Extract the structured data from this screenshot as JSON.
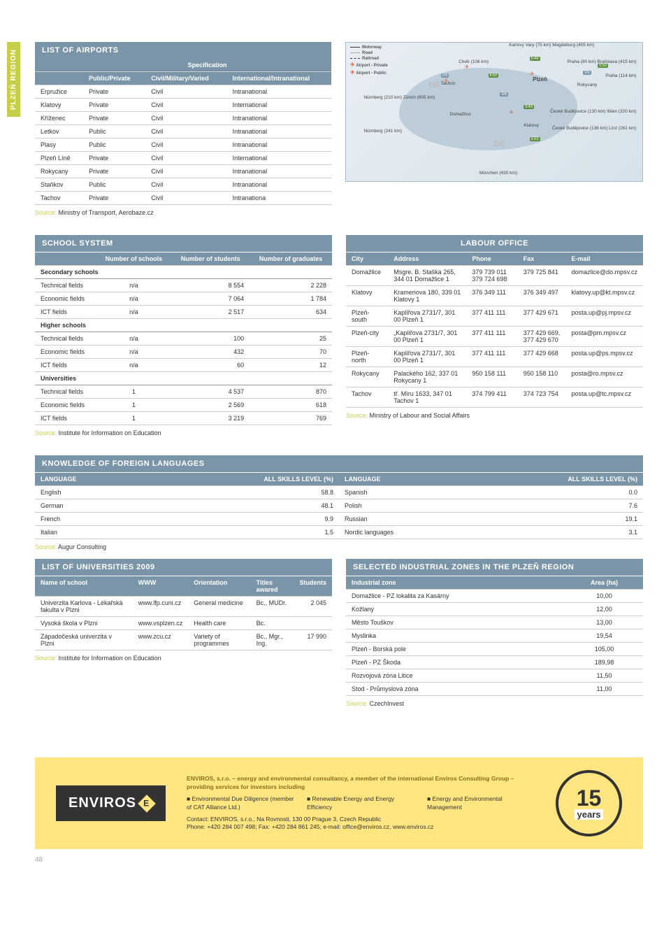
{
  "region_label": "PLZEŇ REGION",
  "page_number": "48",
  "airports": {
    "title": "LIST OF AIRPORTS",
    "spec_label": "Specification",
    "cols": [
      "Public/Private",
      "Civil/Military/Varied",
      "International/Intranational"
    ],
    "rows": [
      [
        "Erpružice",
        "Private",
        "Civil",
        "Intranational"
      ],
      [
        "Klatovy",
        "Private",
        "Civil",
        "International"
      ],
      [
        "Kříženec",
        "Private",
        "Civil",
        "Intranational"
      ],
      [
        "Letkov",
        "Public",
        "Civil",
        "Intranational"
      ],
      [
        "Plasy",
        "Public",
        "Civil",
        "Intranational"
      ],
      [
        "Plzeň Líně",
        "Private",
        "Civil",
        "International"
      ],
      [
        "Rokycany",
        "Private",
        "Civil",
        "Intranational"
      ],
      [
        "Staňkov",
        "Public",
        "Civil",
        "Intranational"
      ],
      [
        "Tachov",
        "Private",
        "Civil",
        "Intranationa"
      ]
    ],
    "source": "Ministry of Transport, Aerobaze.cz"
  },
  "map": {
    "legend": [
      "Motorway",
      "Road",
      "Railroad",
      "Airport - Private",
      "Airport - Public"
    ],
    "labels": {
      "kv": "Karlovy Vary (75 km) Magdeburg (405 km)",
      "cheb": "Cheb (106 km)",
      "praha90": "Praha (90 km) Bratislava (415 km)",
      "praha114": "Praha (114 km)",
      "nurnberg210": "Nürnberg (210 km) Zürich (605 km)",
      "nurnberg241": "Nürnberg (241 km)",
      "cb130": "České Budějovice (130 km) Wien (320 km)",
      "cb136": "České Budějovice (136 km) Linz (261 km)",
      "munchen": "München (430 km)",
      "plzen": "Plzeň",
      "tachov": "Tachov",
      "domazlice": "Domažlice",
      "klatovy": "Klatovy",
      "rokycany": "Rokycany"
    },
    "roads_e": [
      "E49",
      "E50",
      "E50",
      "E49",
      "E53"
    ],
    "roads_d": [
      "D5",
      "D5",
      "D5"
    ],
    "de": "DE"
  },
  "school": {
    "title": "SCHOOL SYSTEM",
    "cols": [
      "Number of schools",
      "Number of students",
      "Number of graduates"
    ],
    "groups": [
      {
        "name": "Secondary schools",
        "rows": [
          [
            "Technical fields",
            "n/a",
            "8 554",
            "2 228"
          ],
          [
            "Economic fields",
            "n/a",
            "7 064",
            "1 784"
          ],
          [
            "ICT fields",
            "n/a",
            "2 517",
            "634"
          ]
        ]
      },
      {
        "name": "Higher schools",
        "rows": [
          [
            "Technical fields",
            "n/a",
            "100",
            "25"
          ],
          [
            "Economic fields",
            "n/a",
            "432",
            "70"
          ],
          [
            "ICT fields",
            "n/a",
            "60",
            "12"
          ]
        ]
      },
      {
        "name": "Universities",
        "rows": [
          [
            "Technical fields",
            "1",
            "4 537",
            "870"
          ],
          [
            "Economic fields",
            "1",
            "2 569",
            "618"
          ],
          [
            "ICT fields",
            "1",
            "3 219",
            "769"
          ]
        ]
      }
    ],
    "source": "Institute for Information on Education"
  },
  "labour": {
    "title": "LABOUR OFFICE",
    "cols": [
      "City",
      "Address",
      "Phone",
      "Fax",
      "E-mail"
    ],
    "rows": [
      [
        "Domažlice",
        "Msgre. B. Staška 265, 344 01 Domažlice 1",
        "379 739 011 379 724 698",
        "379 725 841",
        "domazlice@do.mpsv.cz"
      ],
      [
        "Klatovy",
        "Krameriova 180, 339 01 Klatovy 1",
        "376 349 111",
        "376 349 497",
        "klatovy.up@kt.mpsv.cz"
      ],
      [
        "Plzeň-south",
        "Kaplířova 2731/7, 301 00 Plzeň 1",
        "377 411 111",
        "377 429 671",
        "posta.up@pj.mpsv.cz"
      ],
      [
        "Plzeň-city",
        "„Kaplířova 2731/7, 301 00 Plzeň 1",
        "377 411 111",
        "377 429 669, 377 429 670",
        "posta@pm.mpsv.cz"
      ],
      [
        "Plzeň-north",
        "Kaplířova 2731/7, 301 00 Plzeň 1",
        "377 411 111",
        "377 429 668",
        "posta.up@ps.mpsv.cz"
      ],
      [
        "Rokycany",
        "Palackého 162, 337 01 Rokycany 1",
        "950 158 111",
        "950 158 110",
        "posta@ro.mpsv.cz"
      ],
      [
        "Tachov",
        "tř. Míru 1633, 347 01 Tachov 1",
        "374 799 411",
        "374 723 754",
        "posta.up@tc.mpsv.cz"
      ]
    ],
    "source": "Ministry of Labour and Social Affairs"
  },
  "languages": {
    "title": "KNOWLEDGE OF FOREIGN LANGUAGES",
    "cols": [
      "LANGUAGE",
      "ALL SKILLS LEVEL (%)",
      "LANGUAGE",
      "ALL SKILLS LEVEL (%)"
    ],
    "rows": [
      [
        "English",
        "58.8",
        "Spanish",
        "0.0"
      ],
      [
        "German",
        "48.1",
        "Polish",
        "7.6"
      ],
      [
        "French",
        "9.9",
        "Russian",
        "19.1"
      ],
      [
        "Italian",
        "1.5",
        "Nordic languages",
        "3.1"
      ]
    ],
    "source": "Augur Consulting"
  },
  "universities": {
    "title": "LIST OF UNIVERSITIES 2009",
    "cols": [
      "Name of school",
      "WWW",
      "Orientation",
      "Titles awared",
      "Students"
    ],
    "rows": [
      [
        "Univerzita Karlova - Lékařská fakulta v Plzni",
        "www.lfp.cuni.cz",
        "General medicine",
        "Bc., MUDr.",
        "2 045"
      ],
      [
        "Vysoká škola v Plzni",
        "www.vsplzen.cz",
        "Health care",
        "Bc.",
        ""
      ],
      [
        "Západočeská univerzita v Plzni",
        "www.zcu.cz",
        "Variety of programmes",
        "Bc., Mgr., Ing.",
        "17 990"
      ]
    ],
    "source": "Institute for Information on Education"
  },
  "zones": {
    "title": "SELECTED INDUSTRIAL ZONES IN THE PLZEŇ REGION",
    "cols": [
      "Industrial zone",
      "Area (ha)"
    ],
    "rows": [
      [
        "Domažlice - PZ lokalita za Kasárny",
        "10,00"
      ],
      [
        "Kožlany",
        "12,00"
      ],
      [
        "Město Touškov",
        "13,00"
      ],
      [
        "Myslinka",
        "19,54"
      ],
      [
        "Plzeň - Borská pole",
        "105,00"
      ],
      [
        "Plzeň - PZ Škoda",
        "189,98"
      ],
      [
        "Rozvojová zóna Litice",
        "11,50"
      ],
      [
        "Stod - Průmyslová zóna",
        "11,00"
      ]
    ],
    "source": "CzechInvest"
  },
  "footer": {
    "logo": "ENVIROS",
    "title": "ENVIROS, s.r.o. – energy and environmental consultancy, a member of the international Enviros Consulting Group – providing services for investors including",
    "c1": "Environmental Due Diligence (member of CAT Alliance Ltd.)",
    "c2": "Renewable Energy and Energy Efficiency",
    "c3": "Energy and Environmental Management",
    "contact": "Contact: ENVIROS, s.r.o., Na Rovnosti, 130 00  Prague 3, Czech Republic",
    "phone": "Phone: +420 284 007 498; Fax: +420 284 861 245; e-mail: office@enviros.cz, www.enviros.cz",
    "years_num": "15",
    "years_lbl": "years"
  },
  "source_label": "Source: "
}
